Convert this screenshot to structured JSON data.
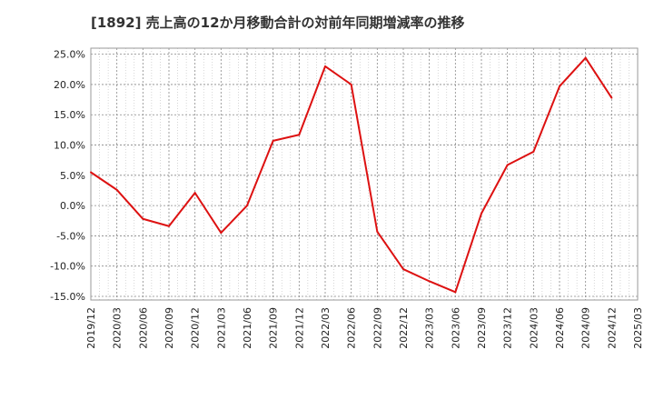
{
  "chart_data": {
    "type": "line",
    "title": "[1892]  売上高の12か月移動合計の対前年同期増減率の推移",
    "xlabel": "",
    "ylabel": "",
    "x_ticks": [
      "2019/12",
      "2020/03",
      "2020/06",
      "2020/09",
      "2020/12",
      "2021/03",
      "2021/06",
      "2021/09",
      "2021/12",
      "2022/03",
      "2022/06",
      "2022/09",
      "2022/12",
      "2023/03",
      "2023/06",
      "2023/09",
      "2023/12",
      "2024/03",
      "2024/06",
      "2024/09",
      "2024/12",
      "2025/03"
    ],
    "y_ticks": [
      "25.0%",
      "20.0%",
      "15.0%",
      "10.0%",
      "5.0%",
      "0.0%",
      "-5.0%",
      "-10.0%",
      "-15.0%"
    ],
    "y_tick_values": [
      25,
      20,
      15,
      10,
      5,
      0,
      -5,
      -10,
      -15
    ],
    "ylim": [
      -15,
      25
    ],
    "grid": true,
    "series": [
      {
        "color": "#dd1111",
        "x": [
          "2019/12",
          "2020/03",
          "2020/06",
          "2020/09",
          "2020/12",
          "2021/03",
          "2021/06",
          "2021/09",
          "2021/12",
          "2022/03",
          "2022/06",
          "2022/09",
          "2022/12",
          "2023/03",
          "2023/06",
          "2023/09",
          "2023/12",
          "2024/03",
          "2024/06",
          "2024/09",
          "2024/12"
        ],
        "values": [
          5.5,
          2.6,
          -2.2,
          -3.4,
          2.1,
          -4.5,
          0.0,
          10.7,
          11.7,
          23.0,
          20.0,
          -4.3,
          -10.5,
          -12.5,
          -14.3,
          -1.3,
          6.7,
          8.9,
          19.7,
          24.4,
          17.8
        ]
      }
    ]
  }
}
